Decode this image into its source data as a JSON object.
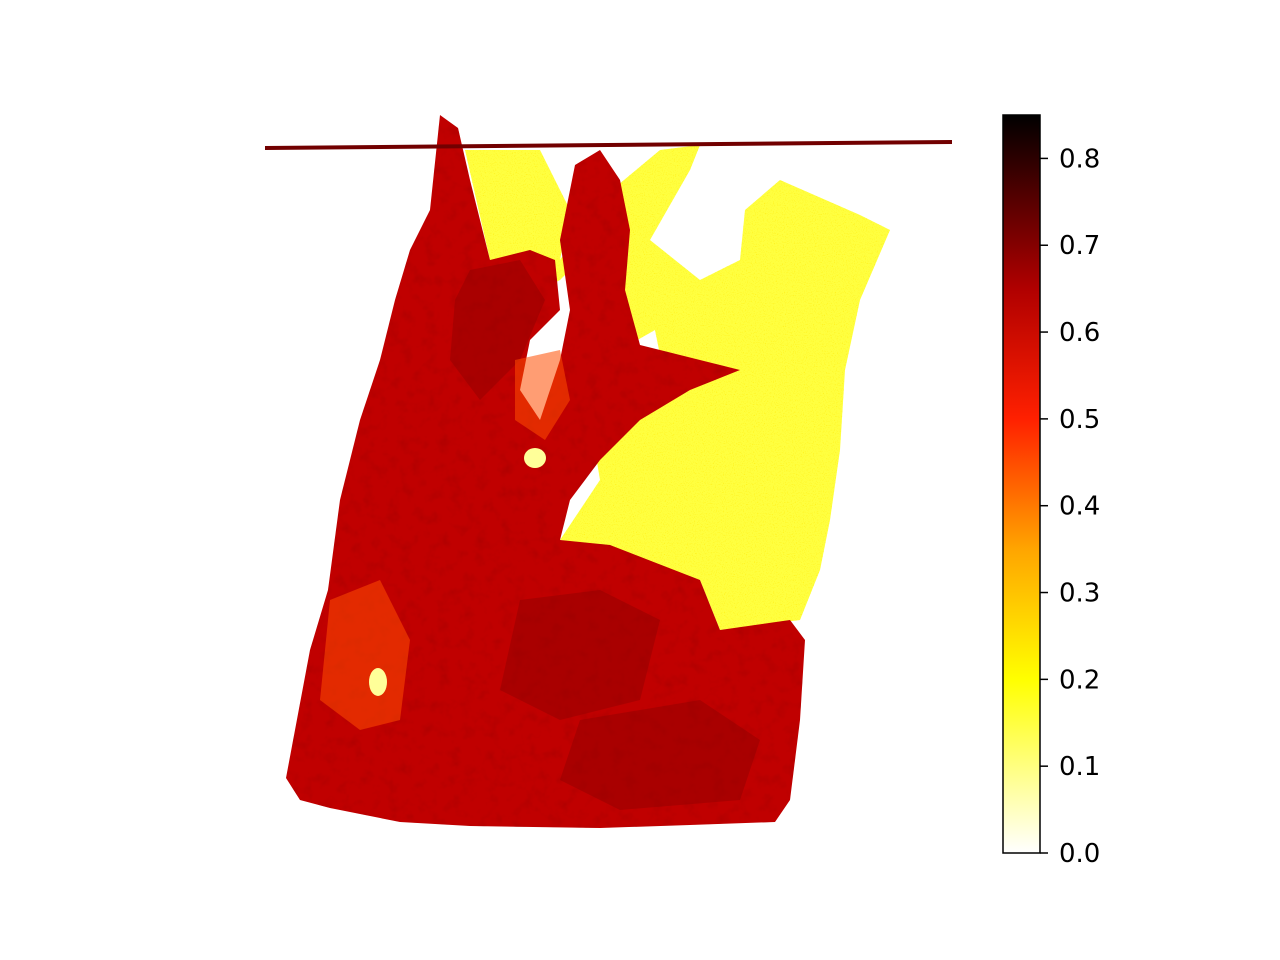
{
  "chart_data": {
    "type": "heatmap",
    "title": "",
    "xlabel": "",
    "ylabel": "",
    "axes_visible": false,
    "grid": false,
    "colormap": {
      "name": "hot_r",
      "stops": [
        {
          "value": 0.0,
          "color": "#ffffff"
        },
        {
          "value": 0.2,
          "color": "#ffff00"
        },
        {
          "value": 0.35,
          "color": "#ffa500"
        },
        {
          "value": 0.5,
          "color": "#ff2000"
        },
        {
          "value": 0.65,
          "color": "#b00000"
        },
        {
          "value": 0.85,
          "color": "#000000"
        }
      ]
    },
    "colorbar": {
      "orientation": "vertical",
      "position": "right",
      "range": [
        0.0,
        0.85
      ],
      "ticks": [
        {
          "value": 0.0,
          "label": "0.0"
        },
        {
          "value": 0.1,
          "label": "0.1"
        },
        {
          "value": 0.2,
          "label": "0.2"
        },
        {
          "value": 0.3,
          "label": "0.3"
        },
        {
          "value": 0.4,
          "label": "0.4"
        },
        {
          "value": 0.5,
          "label": "0.5"
        },
        {
          "value": 0.6,
          "label": "0.6"
        },
        {
          "value": 0.7,
          "label": "0.7"
        },
        {
          "value": 0.8,
          "label": "0.8"
        }
      ]
    },
    "regions": [
      {
        "name": "tissue-main",
        "approx_value": 0.62
      },
      {
        "name": "tissue-dark-patches",
        "approx_value": 0.68
      },
      {
        "name": "tissue-pale-left",
        "approx_value": 0.45
      },
      {
        "name": "lumen-upper-right",
        "approx_value": 0.15
      },
      {
        "name": "background",
        "approx_value": 0.0
      }
    ]
  }
}
